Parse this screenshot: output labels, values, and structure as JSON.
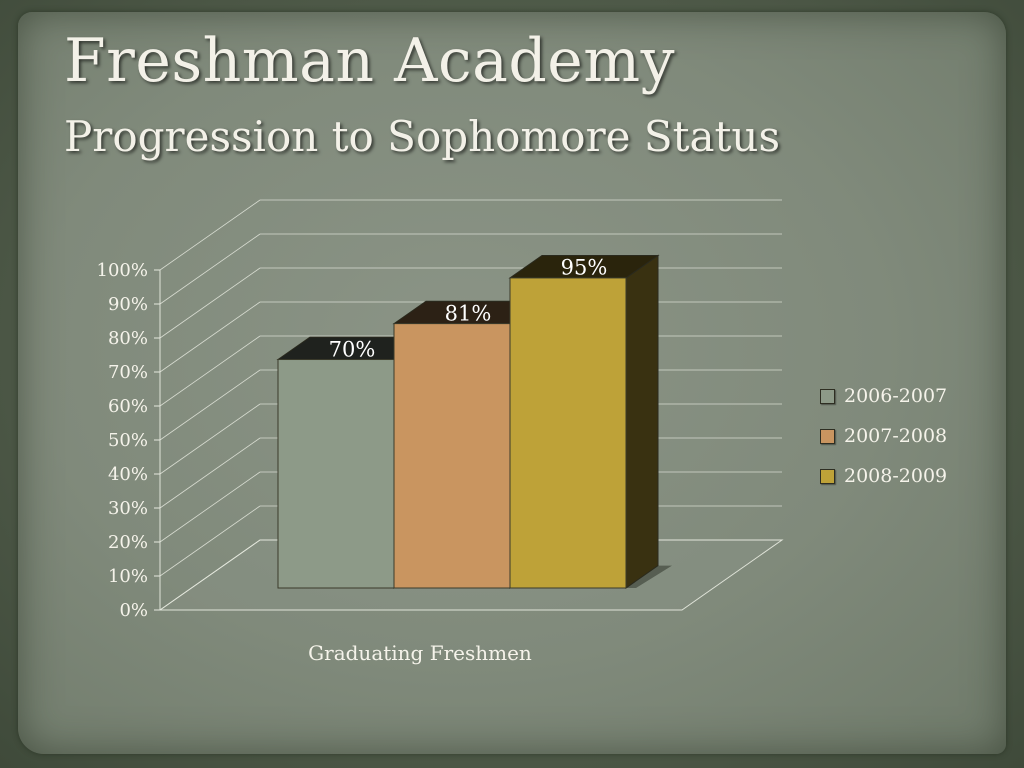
{
  "slide": {
    "title": "Freshman Academy",
    "subtitle": "Progression to Sophomore Status"
  },
  "chart_data": {
    "type": "bar",
    "categories": [
      "Graduating Freshmen"
    ],
    "series": [
      {
        "name": "2006-2007",
        "values": [
          70
        ],
        "label": "70%",
        "color": "#8d9a88"
      },
      {
        "name": "2007-2008",
        "values": [
          81
        ],
        "label": "81%",
        "color": "#c99560"
      },
      {
        "name": "2008-2009",
        "values": [
          95
        ],
        "label": "95%",
        "color": "#bea238"
      }
    ],
    "xlabel": "Graduating Freshmen",
    "ylabel": "",
    "ylim": [
      0,
      100
    ],
    "yticks": [
      "0%",
      "10%",
      "20%",
      "30%",
      "40%",
      "50%",
      "60%",
      "70%",
      "80%",
      "90%",
      "100%"
    ],
    "grid": true,
    "legend": "right",
    "three_d": true
  }
}
